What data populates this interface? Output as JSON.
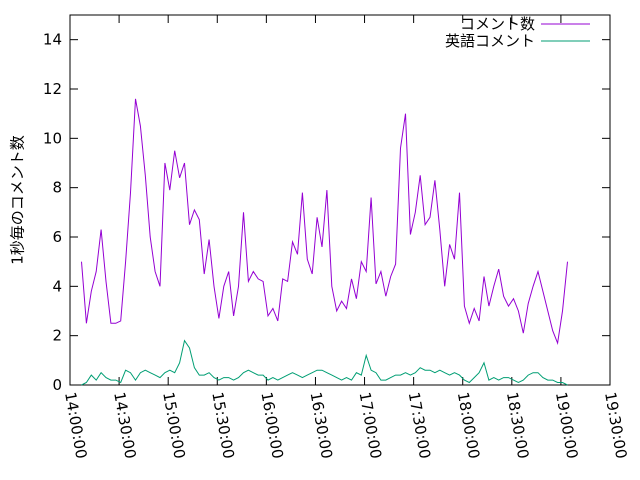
{
  "chart_data": {
    "type": "line",
    "y_label": "1秒毎のコメント数",
    "x": [
      "14:07:00",
      "14:10:00",
      "14:13:00",
      "14:16:00",
      "14:19:00",
      "14:22:00",
      "14:25:00",
      "14:28:00",
      "14:31:00",
      "14:34:00",
      "14:37:00",
      "14:40:00",
      "14:43:00",
      "14:46:00",
      "14:49:00",
      "14:52:00",
      "14:55:00",
      "14:58:00",
      "15:01:00",
      "15:04:00",
      "15:07:00",
      "15:10:00",
      "15:13:00",
      "15:16:00",
      "15:19:00",
      "15:22:00",
      "15:25:00",
      "15:28:00",
      "15:31:00",
      "15:34:00",
      "15:37:00",
      "15:40:00",
      "15:43:00",
      "15:46:00",
      "15:49:00",
      "15:52:00",
      "15:55:00",
      "15:58:00",
      "16:01:00",
      "16:04:00",
      "16:07:00",
      "16:10:00",
      "16:13:00",
      "16:16:00",
      "16:19:00",
      "16:22:00",
      "16:25:00",
      "16:28:00",
      "16:31:00",
      "16:34:00",
      "16:37:00",
      "16:40:00",
      "16:43:00",
      "16:46:00",
      "16:49:00",
      "16:52:00",
      "16:55:00",
      "16:58:00",
      "17:01:00",
      "17:04:00",
      "17:07:00",
      "17:10:00",
      "17:13:00",
      "17:16:00",
      "17:19:00",
      "17:22:00",
      "17:25:00",
      "17:28:00",
      "17:31:00",
      "17:34:00",
      "17:37:00",
      "17:40:00",
      "17:43:00",
      "17:46:00",
      "17:49:00",
      "17:52:00",
      "17:55:00",
      "17:58:00",
      "18:01:00",
      "18:04:00",
      "18:07:00",
      "18:10:00",
      "18:13:00",
      "18:16:00",
      "18:19:00",
      "18:22:00",
      "18:25:00",
      "18:28:00",
      "18:31:00",
      "18:34:00",
      "18:37:00",
      "18:40:00",
      "18:43:00",
      "18:46:00",
      "18:49:00",
      "18:52:00",
      "18:55:00",
      "18:58:00",
      "19:01:00",
      "19:04:00"
    ],
    "series": [
      {
        "name": "コメント数",
        "color": "#9400d3",
        "values": [
          5.0,
          2.5,
          3.8,
          4.6,
          6.3,
          4.2,
          2.5,
          2.5,
          2.6,
          5.0,
          7.8,
          11.6,
          10.5,
          8.5,
          6.0,
          4.6,
          4.0,
          9.0,
          7.9,
          9.5,
          8.4,
          9.0,
          6.5,
          7.1,
          6.7,
          4.5,
          5.9,
          4.0,
          2.7,
          4.0,
          4.6,
          2.8,
          4.0,
          7.0,
          4.2,
          4.6,
          4.3,
          4.2,
          2.8,
          3.1,
          2.6,
          4.3,
          4.2,
          5.8,
          5.3,
          7.8,
          5.1,
          4.5,
          6.8,
          5.6,
          7.9,
          4.0,
          3.0,
          3.4,
          3.1,
          4.3,
          3.5,
          5.0,
          4.6,
          7.6,
          4.1,
          4.6,
          3.6,
          4.4,
          4.9,
          9.6,
          11.0,
          6.1,
          7.0,
          8.5,
          6.5,
          6.8,
          8.3,
          6.3,
          4.0,
          5.7,
          5.1,
          7.8,
          3.2,
          2.5,
          3.1,
          2.6,
          4.4,
          3.2,
          4.0,
          4.7,
          3.6,
          3.2,
          3.5,
          3.0,
          2.1,
          3.3,
          4.0,
          4.6,
          3.8,
          3.0,
          2.2,
          1.7,
          3.0,
          5.0
        ]
      },
      {
        "name": "英語コメント",
        "color": "#009e73",
        "values": [
          0,
          0.1,
          0.4,
          0.2,
          0.5,
          0.3,
          0.2,
          0.2,
          0.1,
          0.6,
          0.5,
          0.2,
          0.5,
          0.6,
          0.5,
          0.4,
          0.3,
          0.5,
          0.6,
          0.5,
          0.9,
          1.8,
          1.5,
          0.7,
          0.4,
          0.4,
          0.5,
          0.3,
          0.2,
          0.3,
          0.3,
          0.2,
          0.3,
          0.5,
          0.6,
          0.5,
          0.4,
          0.4,
          0.2,
          0.3,
          0.2,
          0.3,
          0.4,
          0.5,
          0.4,
          0.3,
          0.4,
          0.5,
          0.6,
          0.6,
          0.5,
          0.4,
          0.3,
          0.2,
          0.3,
          0.2,
          0.5,
          0.4,
          1.2,
          0.6,
          0.5,
          0.2,
          0.2,
          0.3,
          0.4,
          0.4,
          0.5,
          0.4,
          0.5,
          0.7,
          0.6,
          0.6,
          0.5,
          0.6,
          0.5,
          0.4,
          0.5,
          0.4,
          0.2,
          0.1,
          0.3,
          0.5,
          0.9,
          0.2,
          0.3,
          0.2,
          0.3,
          0.3,
          0.2,
          0.1,
          0.2,
          0.4,
          0.5,
          0.5,
          0.3,
          0.2,
          0.2,
          0.1,
          0.1,
          0.0
        ]
      }
    ],
    "xlim": [
      "14:00:00",
      "19:30:00"
    ],
    "xticks": [
      "14:00:00",
      "14:30:00",
      "15:00:00",
      "15:30:00",
      "16:00:00",
      "16:30:00",
      "17:00:00",
      "17:30:00",
      "18:00:00",
      "18:30:00",
      "19:00:00",
      "19:30:00"
    ],
    "ylim": [
      0,
      15
    ],
    "yticks": [
      0,
      2,
      4,
      6,
      8,
      10,
      12,
      14
    ],
    "legend": "top-right"
  }
}
